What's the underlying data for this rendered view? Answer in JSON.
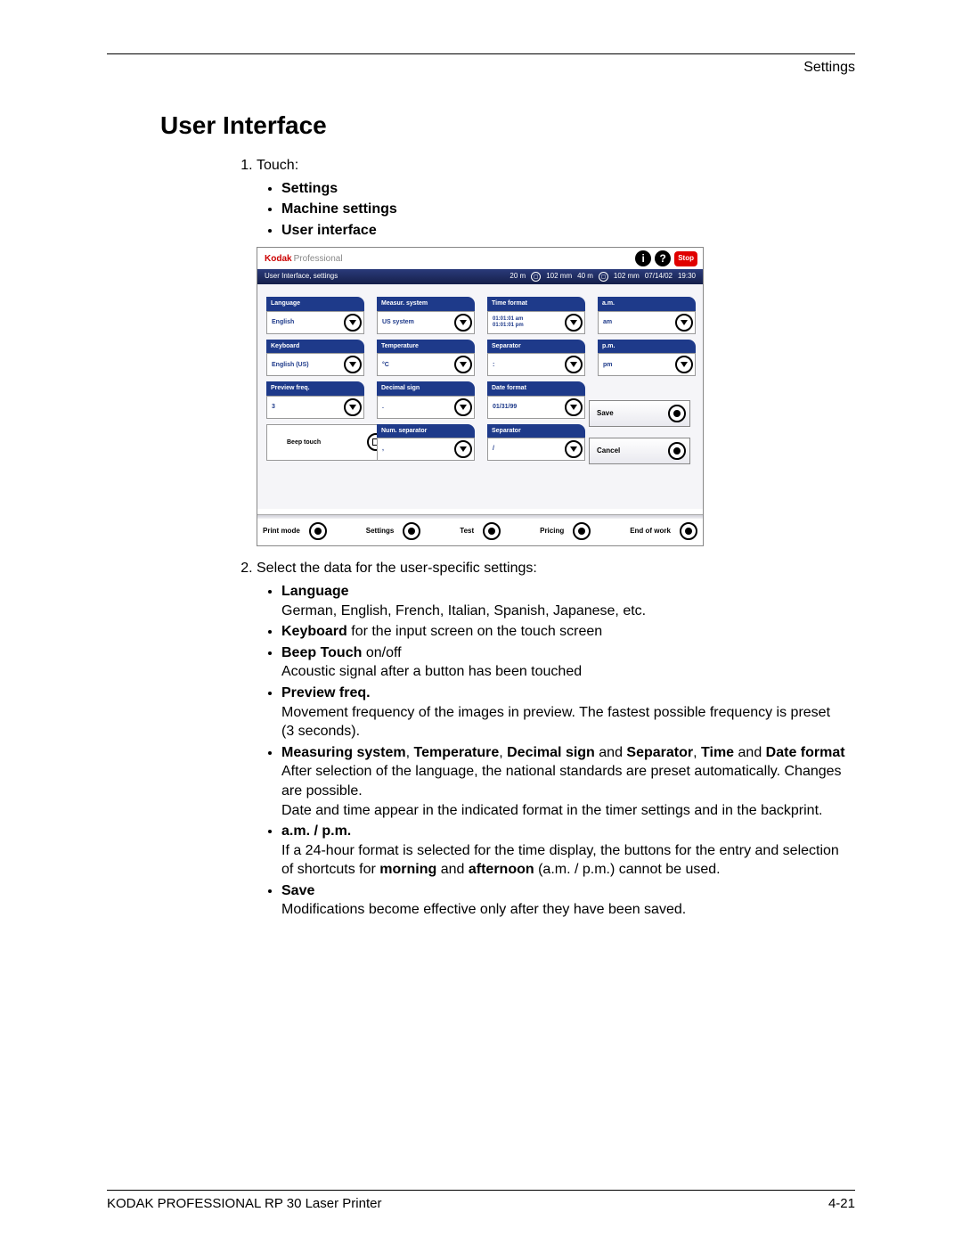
{
  "page_header_right": "Settings",
  "section_title": "User Interface",
  "step1_lead": "Touch:",
  "step1_items": [
    "Settings",
    "Machine settings",
    "User interface"
  ],
  "step2_lead": "Select the data for the user-specific settings:",
  "settings_list": {
    "lang_head": "Language",
    "lang_body": "German, English, French, Italian, Spanish, Japanese, etc.",
    "kb_bold": "Keyboard",
    "kb_rest": " for the input screen on the touch screen",
    "beep_bold": "Beep Touch",
    "beep_rest": " on/off",
    "beep_body": "Acoustic signal after a button has been touched",
    "prev_head": "Preview freq.",
    "prev_body": "Movement frequency of the images in preview. The fastest possible frequency is preset (3 seconds).",
    "fmt_b1": "Measuring system",
    "fmt_p1": ", ",
    "fmt_b2": "Temperature",
    "fmt_p2": ", ",
    "fmt_b3": "Decimal sign",
    "fmt_p3": " and ",
    "fmt_b4": "Separator",
    "fmt_p4": ", ",
    "fmt_b5": "Time",
    "fmt_p5": " and ",
    "fmt_b6": "Date format",
    "fmt_body1": "After selection of the language, the national standards are preset automatically. Changes are possible.",
    "fmt_body2": "Date and time appear in the indicated format in the timer settings and in the backprint.",
    "ampm_head": "a.m. / p.m.",
    "ampm_1": "If a 24-hour format is selected for the time display, the buttons for the entry and selection of shortcuts for ",
    "ampm_b1": "morning",
    "ampm_mid": " and ",
    "ampm_b2": "afternoon",
    "ampm_2": " (a.m. / p.m.) cannot be used.",
    "save_head": "Save",
    "save_body": "Modifications become effective only after they have been saved."
  },
  "ui": {
    "brand1": "Kodak",
    "brand2": "Professional",
    "breadcrumb": "User Interface, settings",
    "status_a": "20 m",
    "status_b": "102 mm",
    "status_c": "40 m",
    "status_d": "102 mm",
    "date": "07/14/02",
    "time": "19:30",
    "stop": "Stop",
    "fields": {
      "language": {
        "label": "Language",
        "value": "English"
      },
      "keyboard": {
        "label": "Keyboard",
        "value": "English (US)"
      },
      "preview": {
        "label": "Preview freq.",
        "value": "3"
      },
      "measur": {
        "label": "Measur. system",
        "value": "US system"
      },
      "temp": {
        "label": "Temperature",
        "value": "°C"
      },
      "decimal": {
        "label": "Decimal sign",
        "value": "."
      },
      "numsep": {
        "label": "Num. separator",
        "value": ","
      },
      "timefmt": {
        "label": "Time format",
        "line1": "01:01:01 am",
        "line2": "01:01:01 pm"
      },
      "sep1": {
        "label": "Separator",
        "value": ":"
      },
      "datefmt": {
        "label": "Date format",
        "value": "01/31/99"
      },
      "sep2": {
        "label": "Separator",
        "value": "/"
      },
      "am": {
        "label": "a.m.",
        "value": "am"
      },
      "pm": {
        "label": "p.m.",
        "value": "pm"
      }
    },
    "beep_label": "Beep touch",
    "save_btn": "Save",
    "cancel_btn": "Cancel",
    "footer": {
      "print": "Print mode",
      "settings": "Settings",
      "test": "Test",
      "pricing": "Pricing",
      "end": "End of work"
    }
  },
  "footer_left": "KODAK PROFESSIONAL RP 30 Laser Printer",
  "footer_right": "4-21"
}
